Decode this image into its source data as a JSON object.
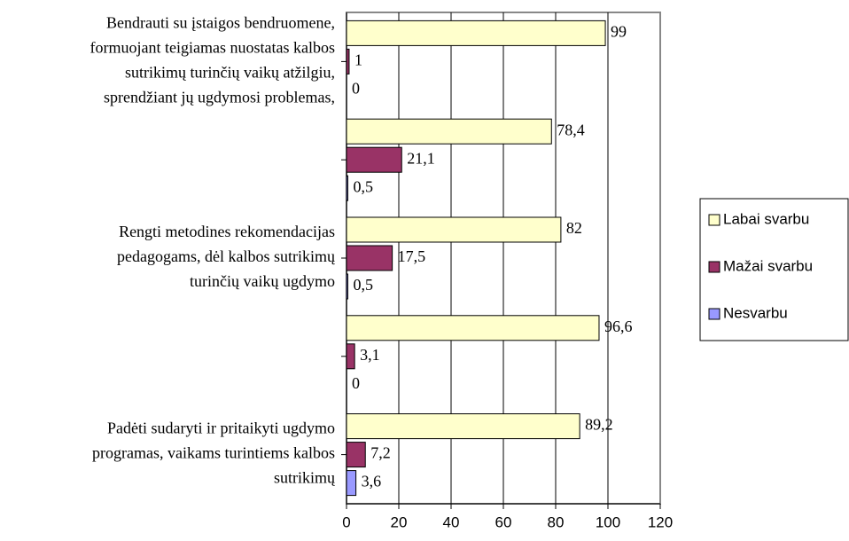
{
  "chart_data": {
    "type": "bar",
    "orientation": "horizontal",
    "categories": [
      [
        "Bendrauti su įstaigos bendruomene,",
        "formuojant teigiamas nuostatas kalbos",
        "sutrikimų turinčių vaikų atžilgiu,",
        "sprendžiant jų ugdymosi problemas,"
      ],
      null,
      [
        "Rengti metodines rekomendacijas",
        "pedagogams, dėl kalbos sutrikimų",
        "turinčių vaikų ugdymo"
      ],
      null,
      [
        "Padėti sudaryti ir pritaikyti ugdymo",
        "programas, vaikams turintiems kalbos",
        "sutrikimų"
      ]
    ],
    "series": [
      {
        "name": "Labai svarbu",
        "color": "#ffffcc",
        "values": [
          99,
          78.4,
          82,
          96.6,
          89.2
        ],
        "value_labels": [
          "99",
          "78,4",
          "82",
          "96,6",
          "89,2"
        ]
      },
      {
        "name": "Mažai svarbu",
        "color": "#993366",
        "values": [
          1,
          21.1,
          17.5,
          3.1,
          7.2
        ],
        "value_labels": [
          "1",
          "21,1",
          "17,5",
          "3,1",
          "7,2"
        ]
      },
      {
        "name": "Nesvarbu",
        "color": "#9999ff",
        "values": [
          0,
          0.5,
          0.5,
          0,
          3.6
        ],
        "value_labels": [
          "0",
          "0,5",
          "0,5",
          "0",
          "3,6"
        ]
      }
    ],
    "xlim": [
      0,
      120
    ],
    "xticks": [
      0,
      20,
      40,
      60,
      80,
      100,
      120
    ],
    "grid": true,
    "legend": "right"
  }
}
